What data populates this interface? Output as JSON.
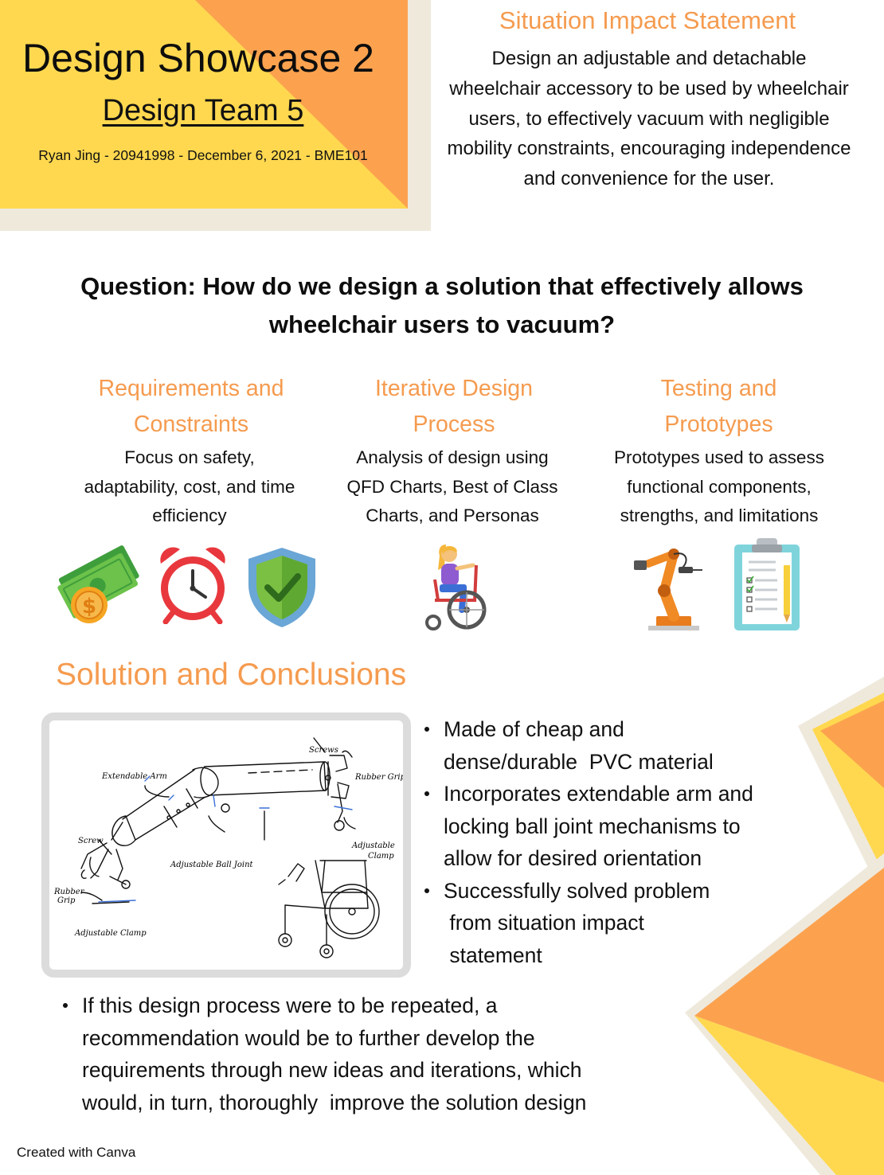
{
  "header": {
    "title": "Design Showcase 2",
    "team": "Design Team 5",
    "byline": "Ryan Jing - 20941998 - December 6, 2021 - BME101"
  },
  "situation": {
    "heading": "Situation Impact Statement",
    "body": "Design an adjustable and detachable wheelchair accessory to be used by wheelchair users, to effectively vacuum with negligible mobility constraints, encouraging independence and convenience for the user."
  },
  "question": "Question: How do we design a solution that effectively allows wheelchair users to vacuum?",
  "columns": [
    {
      "heading_lines": [
        "Requirements and",
        "Constraints"
      ],
      "body_lines": [
        "Focus on safety,",
        "adaptability, cost, and time",
        "efficiency"
      ],
      "icons": [
        "money-icon",
        "alarm-clock-icon",
        "shield-check-icon"
      ]
    },
    {
      "heading_lines": [
        "Iterative Design",
        "Process"
      ],
      "body_lines": [
        "Analysis of design using",
        "QFD Charts, Best of Class",
        "Charts, and Personas"
      ],
      "icons": [
        "wheelchair-user-icon"
      ]
    },
    {
      "heading_lines": [
        "Testing and",
        "Prototypes"
      ],
      "body_lines": [
        "Prototypes used to assess",
        "functional components,",
        "strengths, and limitations"
      ],
      "icons": [
        "robot-arm-icon",
        "clipboard-checklist-icon"
      ]
    }
  ],
  "solution": {
    "heading": "Solution and Conclusions",
    "sketch_labels": {
      "extendable_arm": "Extendable Arm",
      "screws": "Screws",
      "rubber_grip_top": "Rubber Grip",
      "screw": "Screw",
      "adjustable_ball_joint": "Adjustable Ball Joint",
      "adjustable_clamp_right": [
        "Adjustable",
        "Clamp"
      ],
      "rubber_grip_left": [
        "Rubber",
        "Grip"
      ],
      "adjustable_clamp_bottom": "Adjustable Clamp"
    },
    "bullets": [
      [
        "Made of cheap and",
        "dense/durable  PVC material"
      ],
      [
        "Incorporates extendable arm and",
        "locking ball joint mechanisms to",
        "allow for desired orientation"
      ],
      [
        "Successfully solved problem",
        " from situation impact",
        " statement"
      ]
    ],
    "recommendation": [
      "If this design process were to be repeated, a",
      "recommendation would be to further develop the",
      "requirements through new ideas and iterations, which",
      "would, in turn, thoroughly  improve the solution design"
    ]
  },
  "footer": "Created with Canva",
  "colors": {
    "accent_orange": "#f59b4f",
    "yellow": "#ffd84f",
    "beige": "#efe9dc"
  }
}
